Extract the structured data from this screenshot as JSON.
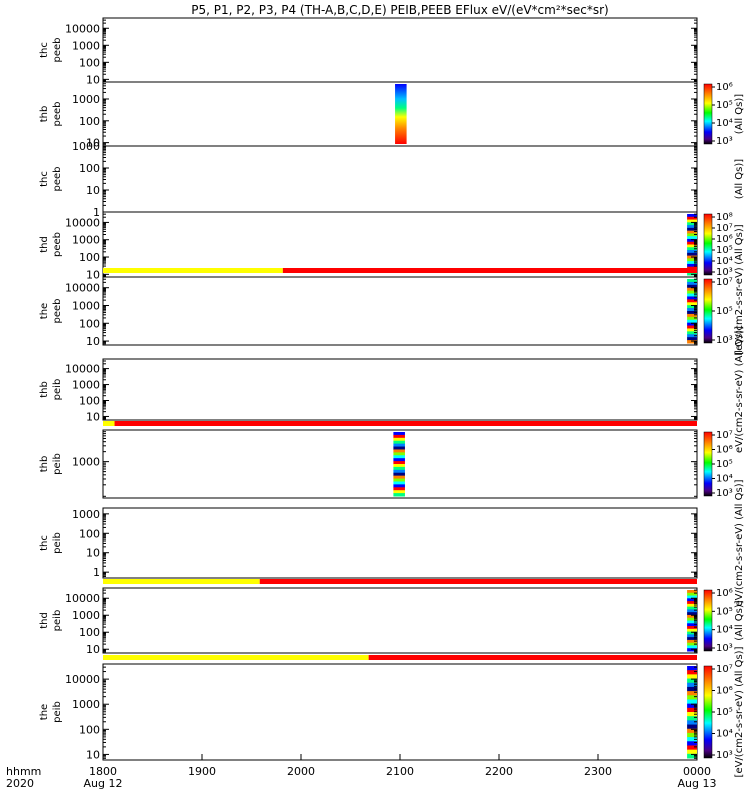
{
  "title": "P5, P1, P2, P3, P4 (TH-A,B,C,D,E) PEIB,PEEB EFlux eV/(eV*cm²*sec*sr)",
  "x_axis": {
    "row_labels": [
      "hhmm",
      "2020"
    ],
    "ticks": [
      {
        "t": 0,
        "label": "1800",
        "sublabel": "Aug 12"
      },
      {
        "t": 60,
        "label": "1900",
        "sublabel": ""
      },
      {
        "t": 120,
        "label": "2000",
        "sublabel": ""
      },
      {
        "t": 180,
        "label": "2100",
        "sublabel": ""
      },
      {
        "t": 240,
        "label": "2200",
        "sublabel": ""
      },
      {
        "t": 300,
        "label": "2300",
        "sublabel": ""
      },
      {
        "t": 360,
        "label": "0000",
        "sublabel": "Aug 13"
      }
    ],
    "range_minutes": [
      0,
      360
    ]
  },
  "chart_data": [
    {
      "type": "heatmap",
      "probe": "thc",
      "instrument": "peeb",
      "ylabel": [
        "thc",
        "peeb"
      ],
      "ylog": true,
      "ylim": [
        7,
        40000
      ],
      "yticks": [
        "10",
        "100",
        "1000",
        "10000"
      ],
      "has_colorbar": false,
      "zlabel": "",
      "data_blocks": [],
      "status_bar": []
    },
    {
      "type": "heatmap",
      "probe": "thb",
      "instrument": "peeb",
      "ylabel": [
        "thb",
        "peeb"
      ],
      "ylog": true,
      "ylim": [
        7,
        6000
      ],
      "yticks": [
        "10",
        "100",
        "1000"
      ],
      "has_colorbar": true,
      "zticks": [
        "10³",
        "10⁴",
        "10⁵",
        "10⁶"
      ],
      "zlabel": "(All Qs)]",
      "data_blocks": [
        {
          "t0": 177,
          "t1": 184,
          "style": "blue-top-red-bottom"
        }
      ],
      "status_bar": []
    },
    {
      "type": "heatmap",
      "probe": "thc",
      "instrument": "peeb",
      "ylabel": [
        "thc",
        "peeb"
      ],
      "ylog": true,
      "ylim": [
        1,
        1000
      ],
      "yticks": [
        "1",
        "10",
        "100",
        "1000"
      ],
      "has_colorbar": false,
      "zlabel": "(All Qs)]",
      "data_blocks": [],
      "status_bar": []
    },
    {
      "type": "heatmap",
      "probe": "thd",
      "instrument": "peeb",
      "ylabel": [
        "thd",
        "peeb"
      ],
      "ylog": true,
      "ylim": [
        7,
        40000
      ],
      "yticks": [
        "10",
        "100",
        "1000",
        "10000"
      ],
      "has_colorbar": true,
      "zticks": [
        "10³",
        "10⁴",
        "10⁵",
        "10⁶",
        "10⁷",
        "10⁸"
      ],
      "zlabel": "(All Qs)]",
      "data_blocks": [
        {
          "t0": 354,
          "t1": 360,
          "style": "mixed"
        }
      ],
      "status_bar": []
    },
    {
      "type": "heatmap",
      "probe": "the",
      "instrument": "peeb",
      "ylabel": [
        "the",
        "peeb"
      ],
      "ylog": true,
      "ylim": [
        6,
        40000
      ],
      "yticks": [
        "10",
        "100",
        "1000",
        "10000"
      ],
      "has_colorbar": true,
      "zticks": [
        "10³",
        "10⁵",
        "10⁷"
      ],
      "zlabel": "[eV/(cm2-s-sr-eV)",
      "data_blocks": [
        {
          "t0": 354,
          "t1": 360,
          "style": "mixed"
        }
      ],
      "status_bar": [
        {
          "t0": 0,
          "t1": 109,
          "color": "#ffff00"
        },
        {
          "t0": 109,
          "t1": 360,
          "color": "#ff0000"
        }
      ]
    },
    {
      "type": "heatmap",
      "probe": "thb",
      "instrument": "peib",
      "ylabel": [
        "thb",
        "peib"
      ],
      "ylog": true,
      "ylim": [
        6,
        40000
      ],
      "yticks": [
        "10",
        "100",
        "1000",
        "10000"
      ],
      "has_colorbar": false,
      "zlabel": "eV/(cm2-s-sr-eV) (All Qs)]",
      "data_blocks": [],
      "status_bar": []
    },
    {
      "type": "heatmap",
      "probe": "thb",
      "instrument": "peib",
      "ylabel": [
        "thb",
        "peib"
      ],
      "ylog": true,
      "ylim": [
        80,
        9000
      ],
      "yticks": [
        "1000"
      ],
      "has_colorbar": true,
      "zticks": [
        "10³",
        "10⁴",
        "10⁵",
        "10⁶",
        "10⁷"
      ],
      "zlabel": "",
      "data_blocks": [
        {
          "t0": 176,
          "t1": 183,
          "style": "mixed"
        }
      ],
      "status_bar": [
        {
          "t0": 0,
          "t1": 7,
          "color": "#ffff00"
        },
        {
          "t0": 7,
          "t1": 360,
          "color": "#ff0000"
        }
      ]
    },
    {
      "type": "heatmap",
      "probe": "thc",
      "instrument": "peib",
      "ylabel": [
        "thc",
        "peib"
      ],
      "ylog": true,
      "ylim": [
        0.5,
        2000
      ],
      "yticks": [
        "1",
        "10",
        "100",
        "1000"
      ],
      "has_colorbar": false,
      "zlabel": "eV/(cm2-s-sr-eV) (All Qs)]",
      "data_blocks": [],
      "status_bar": []
    },
    {
      "type": "heatmap",
      "probe": "thd",
      "instrument": "peib",
      "ylabel": [
        "thd",
        "peib"
      ],
      "ylog": true,
      "ylim": [
        6,
        40000
      ],
      "yticks": [
        "10",
        "100",
        "1000",
        "10000"
      ],
      "has_colorbar": true,
      "zticks": [
        "10³",
        "10⁴",
        "10⁵",
        "10⁶"
      ],
      "zlabel": "(All Qs)]",
      "data_blocks": [
        {
          "t0": 354,
          "t1": 360,
          "style": "mixed"
        }
      ],
      "status_bar": [
        {
          "t0": 0,
          "t1": 95,
          "color": "#ffff00"
        },
        {
          "t0": 95,
          "t1": 360,
          "color": "#ff0000"
        }
      ]
    },
    {
      "type": "heatmap",
      "probe": "the",
      "instrument": "peib",
      "ylabel": [
        "the",
        "peib"
      ],
      "ylog": true,
      "ylim": [
        6,
        40000
      ],
      "yticks": [
        "10",
        "100",
        "1000",
        "10000"
      ],
      "has_colorbar": true,
      "zticks": [
        "10³",
        "10⁴",
        "10⁵",
        "10⁶",
        "10⁷"
      ],
      "zlabel": "[eV/(cm2-s-sr-eV) (All Qs)]",
      "data_blocks": [
        {
          "t0": 354,
          "t1": 360,
          "style": "mixed"
        }
      ],
      "status_bar": [
        {
          "t0": 0,
          "t1": 161,
          "color": "#ffff00"
        },
        {
          "t0": 161,
          "t1": 360,
          "color": "#ff0000"
        }
      ]
    }
  ]
}
